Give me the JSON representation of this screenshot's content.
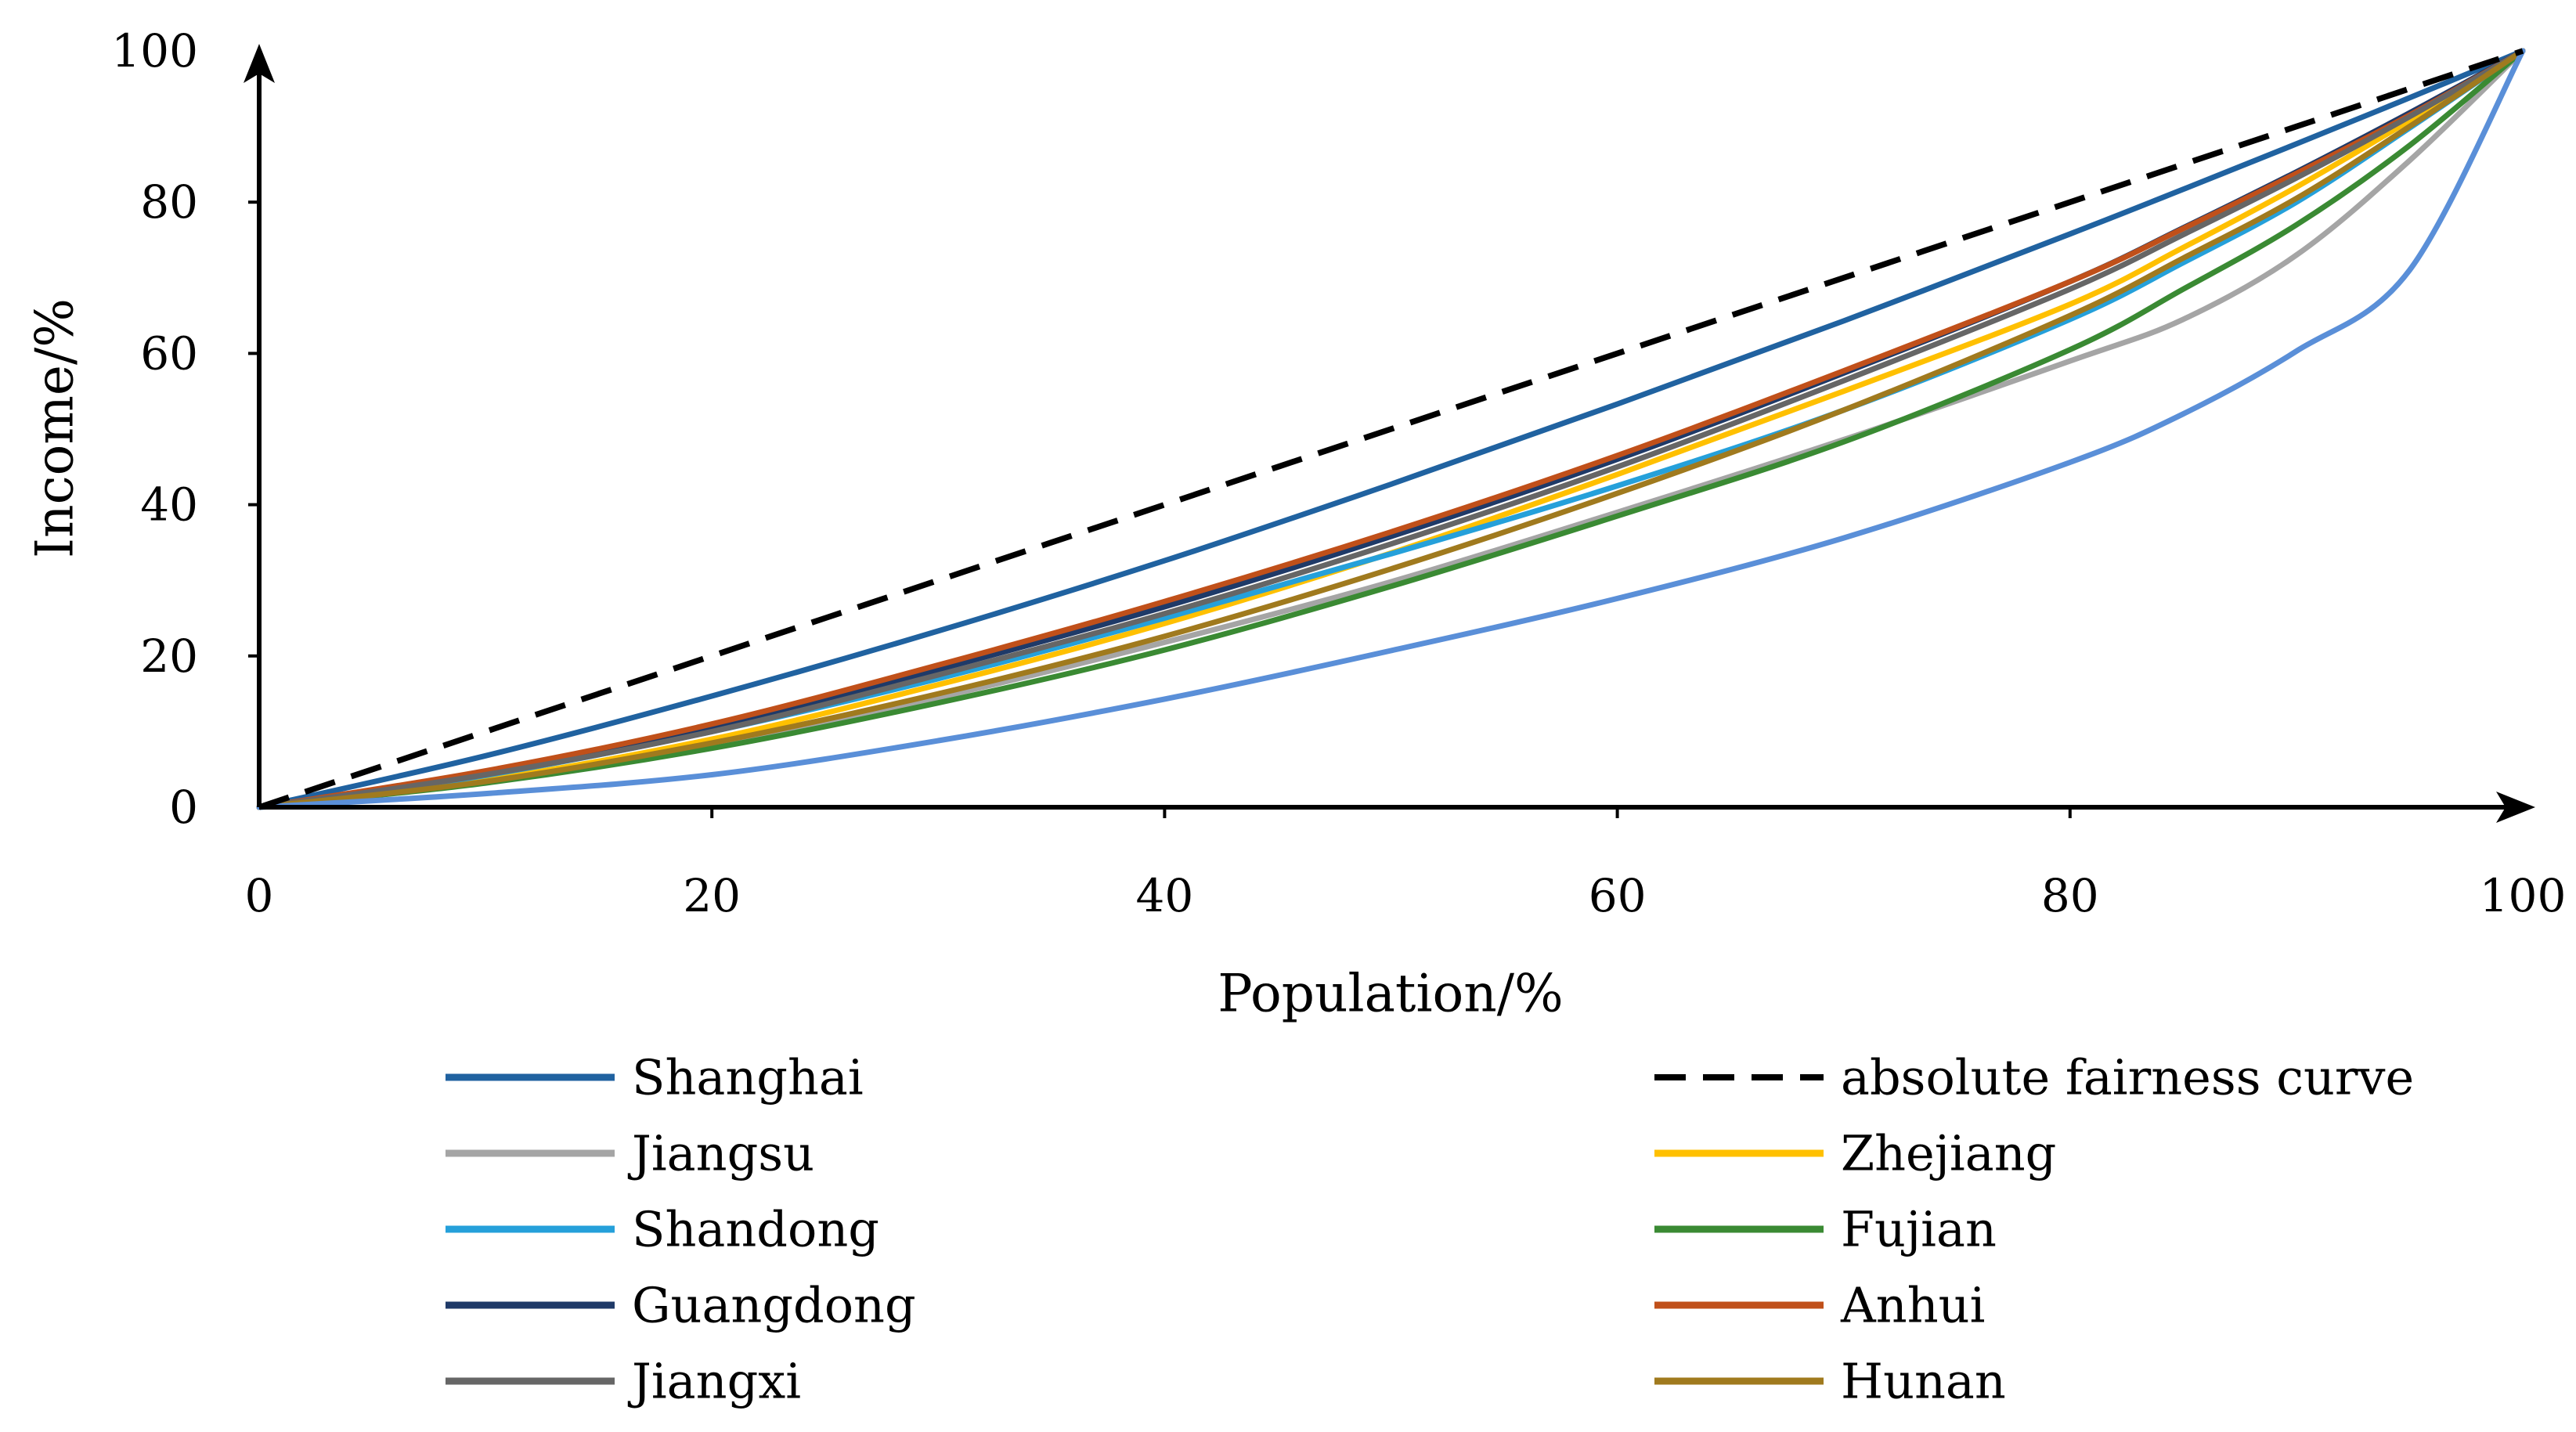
{
  "chart_data": {
    "type": "line",
    "title": "",
    "xlabel": "Population/%",
    "ylabel": "Income/%",
    "xlim": [
      0,
      100
    ],
    "ylim": [
      0,
      100
    ],
    "x_ticks": [
      "0",
      "20",
      "40",
      "60",
      "80",
      "100"
    ],
    "y_ticks": [
      "0",
      "20",
      "40",
      "60",
      "80",
      "100"
    ],
    "grid": false,
    "legend": "bottom",
    "x": [
      0,
      10,
      20,
      30,
      40,
      50,
      60,
      70,
      80,
      85,
      90,
      95,
      100
    ],
    "series": [
      {
        "name": "Shanghai",
        "color": "#2062A0",
        "dashed": false,
        "values": [
          0,
          6.8,
          14.7,
          23.3,
          32.6,
          42.7,
          53.3,
          64.3,
          75.8,
          81.7,
          87.7,
          93.8,
          100
        ]
      },
      {
        "name": "absolute fairness curve",
        "color": "#000000",
        "dashed": true,
        "values": [
          0,
          10,
          20,
          30,
          40,
          50,
          60,
          70,
          80,
          85,
          90,
          95,
          100
        ]
      },
      {
        "name": "Jiangsu",
        "color": "#A5A5A5",
        "dashed": false,
        "values": [
          0,
          3.3,
          8,
          14.5,
          21.8,
          29.8,
          39,
          48.6,
          59,
          64.5,
          73,
          85.5,
          100
        ]
      },
      {
        "name": "Zhejiang",
        "color": "#FFC000",
        "dashed": false,
        "values": [
          0,
          3.6,
          9,
          16.2,
          24.3,
          33.6,
          44,
          55,
          66.5,
          74,
          82,
          90.8,
          100
        ]
      },
      {
        "name": "Shandong",
        "color": "#25A0DA",
        "dashed": false,
        "values": [
          0,
          4.2,
          10,
          17,
          25,
          33.5,
          42.5,
          52.5,
          64.5,
          72,
          80,
          89.8,
          100
        ]
      },
      {
        "name": "Fujian",
        "color": "#3A8A33",
        "dashed": false,
        "values": [
          0,
          3.2,
          7.8,
          13.8,
          20.8,
          29.2,
          38.5,
          48.3,
          60.5,
          68.5,
          77,
          87.5,
          100
        ]
      },
      {
        "name": "Guangdong",
        "color": "#1F3A68",
        "dashed": false,
        "values": [
          0,
          4.5,
          10.5,
          18.2,
          26.5,
          35.8,
          46,
          57.4,
          69.5,
          76.6,
          84,
          91.8,
          100
        ]
      },
      {
        "name": "Anhui",
        "color": "#C0501A",
        "dashed": false,
        "values": [
          0,
          4.8,
          11,
          18.8,
          27.2,
          36.4,
          46.5,
          57.7,
          69.5,
          76.5,
          83.8,
          91.5,
          100
        ]
      },
      {
        "name": "Jiangxi",
        "color": "#666666",
        "dashed": false,
        "values": [
          0,
          4.3,
          10,
          17.5,
          25.6,
          34.8,
          45,
          56.4,
          68.5,
          75.7,
          83.2,
          91.3,
          100
        ]
      },
      {
        "name": "Hunan",
        "color": "#A07A1E",
        "dashed": false,
        "values": [
          0,
          3.4,
          8.5,
          15,
          22.6,
          31.5,
          41.5,
          52.5,
          65,
          72.6,
          80.5,
          90,
          100
        ]
      },
      {
        "color": "#5A8FD8",
        "dashed": false,
        "values": [
          0,
          1.8,
          4.3,
          8.8,
          14.3,
          20.7,
          27.6,
          35.6,
          45.6,
          52,
          60.3,
          71,
          100
        ]
      }
    ]
  }
}
